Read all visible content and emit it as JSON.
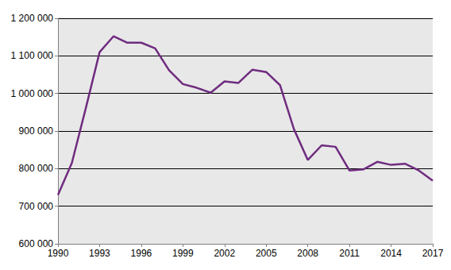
{
  "chart_data": {
    "type": "line",
    "x": [
      1990,
      1991,
      1992,
      1993,
      1994,
      1995,
      1996,
      1997,
      1998,
      1999,
      2000,
      2001,
      2002,
      2003,
      2004,
      2005,
      2006,
      2007,
      2008,
      2009,
      2010,
      2011,
      2012,
      2013,
      2014,
      2015,
      2016,
      2017
    ],
    "values": [
      730000,
      815000,
      960000,
      1110000,
      1152000,
      1135000,
      1135000,
      1120000,
      1062000,
      1025000,
      1015000,
      1002000,
      1032000,
      1028000,
      1063000,
      1057000,
      1022000,
      905000,
      823000,
      862000,
      858000,
      795000,
      798000,
      818000,
      810000,
      813000,
      795000,
      768000
    ],
    "color": "#6f2c7f",
    "xlim": [
      1990,
      2017
    ],
    "xticks": [
      1990,
      1993,
      1996,
      1999,
      2002,
      2005,
      2008,
      2011,
      2014,
      2017
    ],
    "ylim": [
      600000,
      1200000
    ],
    "yticks": [
      {
        "value": 600000,
        "label": "600 000"
      },
      {
        "value": 700000,
        "label": "700 000"
      },
      {
        "value": 800000,
        "label": "800 000"
      },
      {
        "value": 900000,
        "label": "900 000"
      },
      {
        "value": 1000000,
        "label": "1 000 000"
      },
      {
        "value": 1100000,
        "label": "1 100 000"
      },
      {
        "value": 1200000,
        "label": "1 200 000"
      }
    ],
    "grid": true
  }
}
